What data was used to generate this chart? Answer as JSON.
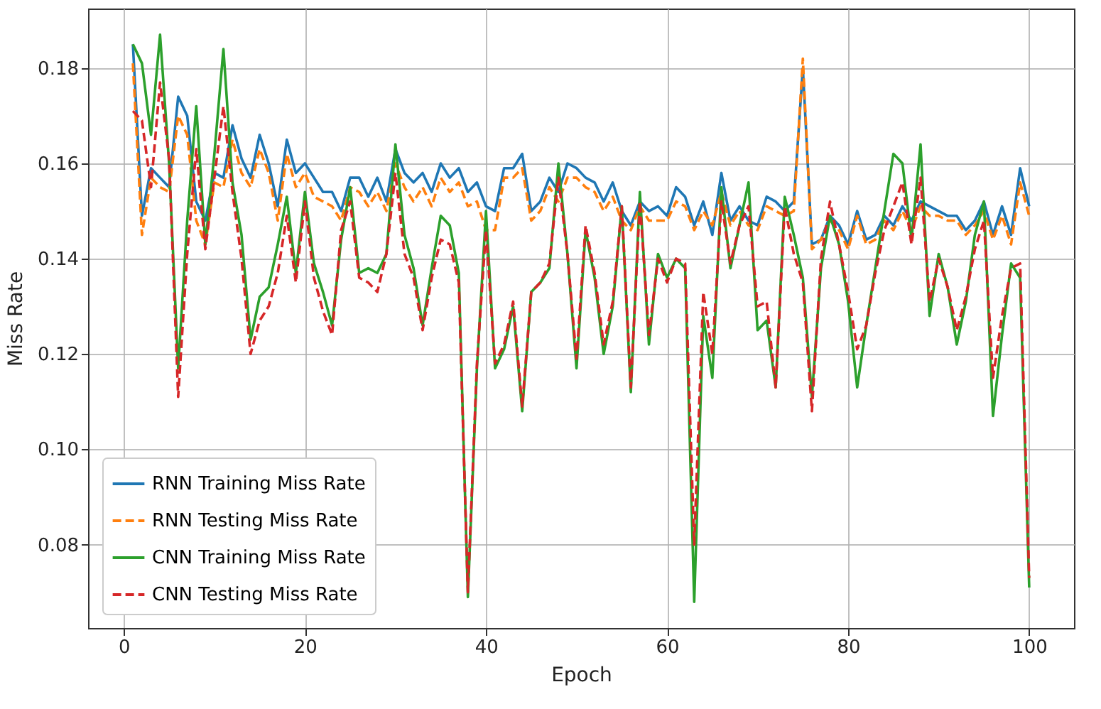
{
  "chart_data": {
    "type": "line",
    "xlabel": "Epoch",
    "ylabel": "Miss Rate",
    "x": [
      1,
      2,
      3,
      4,
      5,
      6,
      7,
      8,
      9,
      10,
      11,
      12,
      13,
      14,
      15,
      16,
      17,
      18,
      19,
      20,
      21,
      22,
      23,
      24,
      25,
      26,
      27,
      28,
      29,
      30,
      31,
      32,
      33,
      34,
      35,
      36,
      37,
      38,
      39,
      40,
      41,
      42,
      43,
      44,
      45,
      46,
      47,
      48,
      49,
      50,
      51,
      52,
      53,
      54,
      55,
      56,
      57,
      58,
      59,
      60,
      61,
      62,
      63,
      64,
      65,
      66,
      67,
      68,
      69,
      70,
      71,
      72,
      73,
      74,
      75,
      76,
      77,
      78,
      79,
      80,
      81,
      82,
      83,
      84,
      85,
      86,
      87,
      88,
      89,
      90,
      91,
      92,
      93,
      94,
      95,
      96,
      97,
      98,
      99,
      100
    ],
    "series": [
      {
        "name": "RNN Training Miss Rate",
        "color": "#1f77b4",
        "line_style": "solid",
        "values": [
          0.185,
          0.149,
          0.159,
          0.157,
          0.155,
          0.174,
          0.17,
          0.152,
          0.148,
          0.158,
          0.157,
          0.168,
          0.161,
          0.157,
          0.166,
          0.16,
          0.151,
          0.165,
          0.158,
          0.16,
          0.157,
          0.154,
          0.154,
          0.15,
          0.157,
          0.157,
          0.153,
          0.157,
          0.152,
          0.163,
          0.158,
          0.156,
          0.158,
          0.154,
          0.16,
          0.157,
          0.159,
          0.154,
          0.156,
          0.151,
          0.15,
          0.159,
          0.159,
          0.162,
          0.15,
          0.152,
          0.157,
          0.154,
          0.16,
          0.159,
          0.157,
          0.156,
          0.152,
          0.156,
          0.15,
          0.147,
          0.152,
          0.15,
          0.151,
          0.149,
          0.155,
          0.153,
          0.147,
          0.152,
          0.145,
          0.158,
          0.148,
          0.151,
          0.148,
          0.147,
          0.153,
          0.152,
          0.15,
          0.152,
          0.18,
          0.143,
          0.144,
          0.149,
          0.147,
          0.143,
          0.15,
          0.144,
          0.145,
          0.149,
          0.147,
          0.151,
          0.148,
          0.152,
          0.151,
          0.15,
          0.149,
          0.149,
          0.146,
          0.148,
          0.152,
          0.145,
          0.151,
          0.145,
          0.159,
          0.151
        ]
      },
      {
        "name": "RNN Testing Miss Rate",
        "color": "#ff7f0e",
        "line_style": "dashed",
        "values": [
          0.181,
          0.145,
          0.157,
          0.155,
          0.154,
          0.17,
          0.166,
          0.148,
          0.143,
          0.156,
          0.155,
          0.165,
          0.158,
          0.155,
          0.163,
          0.158,
          0.148,
          0.162,
          0.155,
          0.158,
          0.153,
          0.152,
          0.151,
          0.148,
          0.155,
          0.154,
          0.151,
          0.154,
          0.15,
          0.16,
          0.155,
          0.152,
          0.155,
          0.151,
          0.157,
          0.154,
          0.156,
          0.151,
          0.152,
          0.146,
          0.146,
          0.157,
          0.157,
          0.159,
          0.148,
          0.15,
          0.155,
          0.152,
          0.157,
          0.157,
          0.155,
          0.154,
          0.15,
          0.153,
          0.148,
          0.146,
          0.151,
          0.148,
          0.148,
          0.148,
          0.152,
          0.151,
          0.146,
          0.15,
          0.147,
          0.154,
          0.147,
          0.15,
          0.147,
          0.146,
          0.151,
          0.15,
          0.149,
          0.15,
          0.182,
          0.142,
          0.144,
          0.148,
          0.146,
          0.142,
          0.149,
          0.143,
          0.144,
          0.148,
          0.146,
          0.15,
          0.146,
          0.151,
          0.149,
          0.149,
          0.148,
          0.148,
          0.145,
          0.147,
          0.15,
          0.144,
          0.149,
          0.143,
          0.156,
          0.149
        ]
      },
      {
        "name": "CNN Training Miss Rate",
        "color": "#2ca02c",
        "line_style": "solid",
        "values": [
          0.185,
          0.181,
          0.166,
          0.187,
          0.16,
          0.117,
          0.148,
          0.172,
          0.143,
          0.162,
          0.184,
          0.156,
          0.145,
          0.123,
          0.132,
          0.134,
          0.143,
          0.153,
          0.137,
          0.154,
          0.139,
          0.133,
          0.126,
          0.144,
          0.155,
          0.137,
          0.138,
          0.137,
          0.141,
          0.164,
          0.145,
          0.138,
          0.126,
          0.138,
          0.149,
          0.147,
          0.137,
          0.069,
          0.117,
          0.15,
          0.117,
          0.121,
          0.13,
          0.108,
          0.133,
          0.135,
          0.138,
          0.16,
          0.141,
          0.117,
          0.146,
          0.136,
          0.12,
          0.13,
          0.151,
          0.112,
          0.154,
          0.122,
          0.141,
          0.136,
          0.14,
          0.138,
          0.068,
          0.128,
          0.115,
          0.155,
          0.138,
          0.147,
          0.156,
          0.125,
          0.127,
          0.113,
          0.153,
          0.145,
          0.136,
          0.111,
          0.138,
          0.149,
          0.143,
          0.131,
          0.113,
          0.126,
          0.138,
          0.15,
          0.162,
          0.16,
          0.144,
          0.164,
          0.128,
          0.141,
          0.134,
          0.122,
          0.131,
          0.145,
          0.152,
          0.107,
          0.124,
          0.139,
          0.136,
          0.071
        ]
      },
      {
        "name": "CNN Testing Miss Rate",
        "color": "#d62728",
        "line_style": "dashed",
        "values": [
          0.171,
          0.169,
          0.155,
          0.177,
          0.161,
          0.111,
          0.141,
          0.163,
          0.142,
          0.157,
          0.172,
          0.154,
          0.14,
          0.12,
          0.127,
          0.13,
          0.137,
          0.149,
          0.135,
          0.152,
          0.136,
          0.129,
          0.124,
          0.146,
          0.152,
          0.136,
          0.135,
          0.133,
          0.141,
          0.158,
          0.141,
          0.136,
          0.125,
          0.136,
          0.144,
          0.143,
          0.135,
          0.07,
          0.118,
          0.146,
          0.118,
          0.122,
          0.131,
          0.109,
          0.133,
          0.135,
          0.139,
          0.157,
          0.141,
          0.119,
          0.147,
          0.137,
          0.122,
          0.131,
          0.151,
          0.113,
          0.152,
          0.124,
          0.14,
          0.135,
          0.14,
          0.139,
          0.08,
          0.133,
          0.12,
          0.152,
          0.139,
          0.147,
          0.151,
          0.13,
          0.131,
          0.113,
          0.151,
          0.141,
          0.135,
          0.108,
          0.14,
          0.152,
          0.143,
          0.133,
          0.121,
          0.126,
          0.137,
          0.146,
          0.151,
          0.156,
          0.143,
          0.157,
          0.131,
          0.14,
          0.134,
          0.125,
          0.132,
          0.142,
          0.148,
          0.115,
          0.128,
          0.138,
          0.139,
          0.073
        ]
      }
    ],
    "xlim": [
      -3.95,
      104.95
    ],
    "xticks": [
      0,
      20,
      40,
      60,
      80,
      100
    ],
    "ylim": [
      0.0625,
      0.1925
    ],
    "yticks": [
      {
        "value": 0.08,
        "label": "0.08"
      },
      {
        "value": 0.1,
        "label": "0.10"
      },
      {
        "value": 0.12,
        "label": "0.12"
      },
      {
        "value": 0.14,
        "label": "0.14"
      },
      {
        "value": 0.16,
        "label": "0.16"
      },
      {
        "value": 0.18,
        "label": "0.18"
      }
    ],
    "grid": true,
    "legend": "bottom left",
    "marker": "none"
  }
}
